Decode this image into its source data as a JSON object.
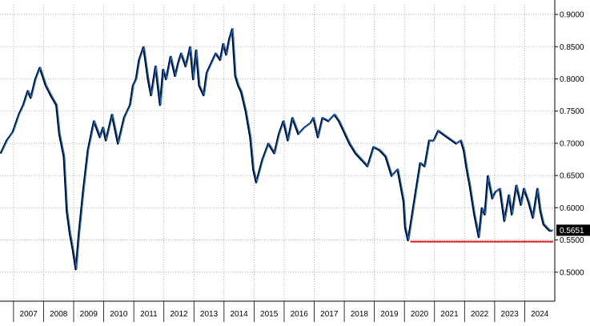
{
  "chart_data": {
    "type": "line",
    "title": "",
    "xlabel": "",
    "ylabel": "",
    "x_tick_labels": [
      "2007",
      "2008",
      "2009",
      "2010",
      "2011",
      "2012",
      "2013",
      "2014",
      "2015",
      "2016",
      "2017",
      "2018",
      "2019",
      "2020",
      "2021",
      "2022",
      "2023",
      "2024"
    ],
    "y_tick_labels": [
      "0.5000",
      "0.5500",
      "0.6000",
      "0.6500",
      "0.7000",
      "0.7500",
      "0.8000",
      "0.8500",
      "0.9000"
    ],
    "y_ticks": [
      0.5,
      0.55,
      0.6,
      0.65,
      0.7,
      0.75,
      0.8,
      0.85,
      0.9
    ],
    "ylim": [
      0.455,
      0.915
    ],
    "xlim": [
      2006.55,
      2025.0
    ],
    "grid": true,
    "y_axis_side": "right",
    "series": [
      {
        "color": "#1f6fd1",
        "shadow_color": "#000000",
        "x": [
          2006.6,
          2006.8,
          2007.0,
          2007.2,
          2007.35,
          2007.5,
          2007.6,
          2007.75,
          2007.9,
          2008.1,
          2008.3,
          2008.45,
          2008.55,
          2008.7,
          2008.8,
          2008.9,
          2009.0,
          2009.1,
          2009.2,
          2009.35,
          2009.5,
          2009.7,
          2009.9,
          2010.0,
          2010.1,
          2010.3,
          2010.5,
          2010.7,
          2010.9,
          2011.0,
          2011.1,
          2011.2,
          2011.35,
          2011.5,
          2011.6,
          2011.75,
          2011.9,
          2012.0,
          2012.1,
          2012.25,
          2012.4,
          2012.5,
          2012.6,
          2012.75,
          2012.9,
          2013.0,
          2013.1,
          2013.2,
          2013.35,
          2013.45,
          2013.6,
          2013.75,
          2013.9,
          2014.0,
          2014.1,
          2014.2,
          2014.3,
          2014.4,
          2014.5,
          2014.6,
          2014.75,
          2014.9,
          2015.0,
          2015.1,
          2015.3,
          2015.5,
          2015.7,
          2015.85,
          2016.0,
          2016.15,
          2016.3,
          2016.5,
          2016.7,
          2016.9,
          2017.0,
          2017.15,
          2017.3,
          2017.5,
          2017.7,
          2017.85,
          2018.0,
          2018.2,
          2018.4,
          2018.6,
          2018.8,
          2019.0,
          2019.2,
          2019.4,
          2019.6,
          2019.8,
          2020.0,
          2020.05,
          2020.15,
          2020.25,
          2020.4,
          2020.55,
          2020.7,
          2020.85,
          2021.0,
          2021.15,
          2021.3,
          2021.45,
          2021.6,
          2021.75,
          2021.9,
          2022.0,
          2022.1,
          2022.2,
          2022.35,
          2022.5,
          2022.6,
          2022.7,
          2022.8,
          2022.95,
          2023.05,
          2023.2,
          2023.35,
          2023.5,
          2023.6,
          2023.75,
          2023.9,
          2024.0,
          2024.15,
          2024.3,
          2024.45,
          2024.55,
          2024.65,
          2024.75,
          2024.85,
          2024.95
        ],
        "values": [
          0.685,
          0.705,
          0.718,
          0.745,
          0.76,
          0.782,
          0.771,
          0.8,
          0.818,
          0.79,
          0.772,
          0.76,
          0.715,
          0.68,
          0.595,
          0.56,
          0.535,
          0.505,
          0.56,
          0.63,
          0.69,
          0.735,
          0.71,
          0.725,
          0.705,
          0.745,
          0.7,
          0.74,
          0.76,
          0.79,
          0.8,
          0.83,
          0.85,
          0.8,
          0.775,
          0.82,
          0.76,
          0.815,
          0.8,
          0.835,
          0.805,
          0.825,
          0.84,
          0.82,
          0.85,
          0.8,
          0.845,
          0.79,
          0.775,
          0.81,
          0.825,
          0.84,
          0.83,
          0.855,
          0.838,
          0.862,
          0.878,
          0.805,
          0.79,
          0.78,
          0.75,
          0.71,
          0.66,
          0.64,
          0.675,
          0.7,
          0.685,
          0.715,
          0.735,
          0.705,
          0.74,
          0.715,
          0.725,
          0.732,
          0.74,
          0.71,
          0.74,
          0.735,
          0.745,
          0.735,
          0.72,
          0.7,
          0.685,
          0.675,
          0.665,
          0.695,
          0.69,
          0.68,
          0.65,
          0.66,
          0.61,
          0.57,
          0.55,
          0.58,
          0.625,
          0.67,
          0.665,
          0.705,
          0.705,
          0.72,
          0.715,
          0.71,
          0.705,
          0.7,
          0.705,
          0.69,
          0.66,
          0.635,
          0.59,
          0.555,
          0.6,
          0.59,
          0.65,
          0.615,
          0.625,
          0.63,
          0.58,
          0.62,
          0.59,
          0.635,
          0.605,
          0.63,
          0.61,
          0.585,
          0.63,
          0.595,
          0.575,
          0.57,
          0.5651,
          0.5651
        ]
      }
    ],
    "last_value": 0.5651,
    "last_value_label": "0.5651",
    "reference_line": {
      "color": "#e0262c",
      "x_start": 2020.2,
      "x_end": 2024.95,
      "y": 0.5474
    }
  }
}
